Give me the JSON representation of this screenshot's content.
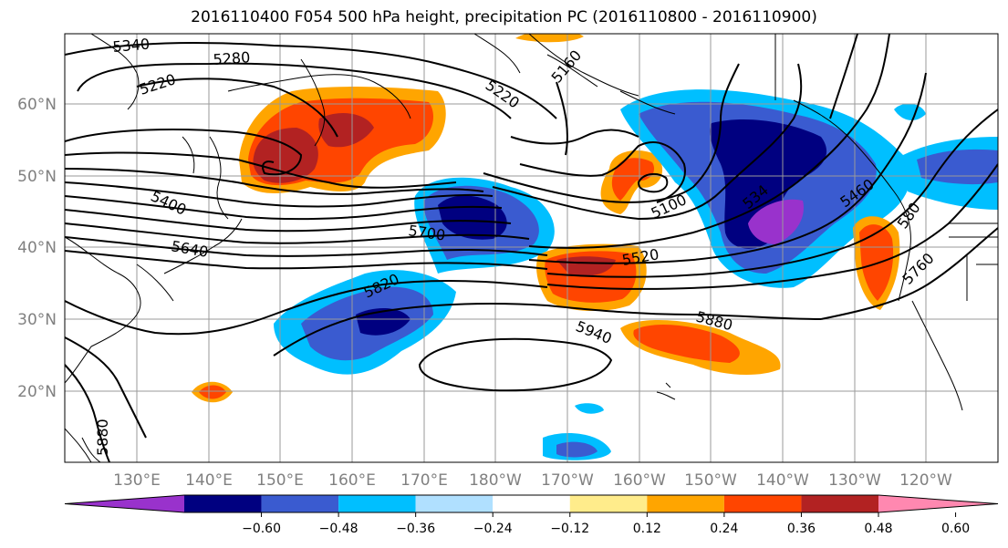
{
  "title": "2016110400 F054 500 hPa height, precipitation PC (2016110800 - 2016110900)",
  "lat_labels": [
    "60°N",
    "50°N",
    "40°N",
    "30°N",
    "20°N"
  ],
  "lon_labels": [
    "130°E",
    "140°E",
    "150°E",
    "160°E",
    "170°E",
    "180°W",
    "170°W",
    "160°W",
    "150°W",
    "140°W",
    "130°W",
    "120°W"
  ],
  "contour_labels": [
    {
      "text": "5340"
    },
    {
      "text": "5280"
    },
    {
      "text": "5220"
    },
    {
      "text": "5220"
    },
    {
      "text": "5160"
    },
    {
      "text": "5400"
    },
    {
      "text": "5640"
    },
    {
      "text": "5700"
    },
    {
      "text": "5820"
    },
    {
      "text": "5520"
    },
    {
      "text": "5100"
    },
    {
      "text": "534"
    },
    {
      "text": "5460"
    },
    {
      "text": "580"
    },
    {
      "text": "5760"
    },
    {
      "text": "5940"
    },
    {
      "text": "5880"
    },
    {
      "text": "5880"
    }
  ],
  "colorbar": {
    "colors": [
      "#9932cc",
      "#000080",
      "#3a5bd0",
      "#00bfff",
      "#b0e0ff",
      "#ffffff",
      "#ffec8b",
      "#ffa500",
      "#ff4500",
      "#b22222",
      "#ff88b0"
    ],
    "ticks": [
      "−0.60",
      "−0.48",
      "−0.36",
      "−0.24",
      "−0.12",
      "0.12",
      "0.24",
      "0.36",
      "0.48",
      "0.60"
    ]
  }
}
